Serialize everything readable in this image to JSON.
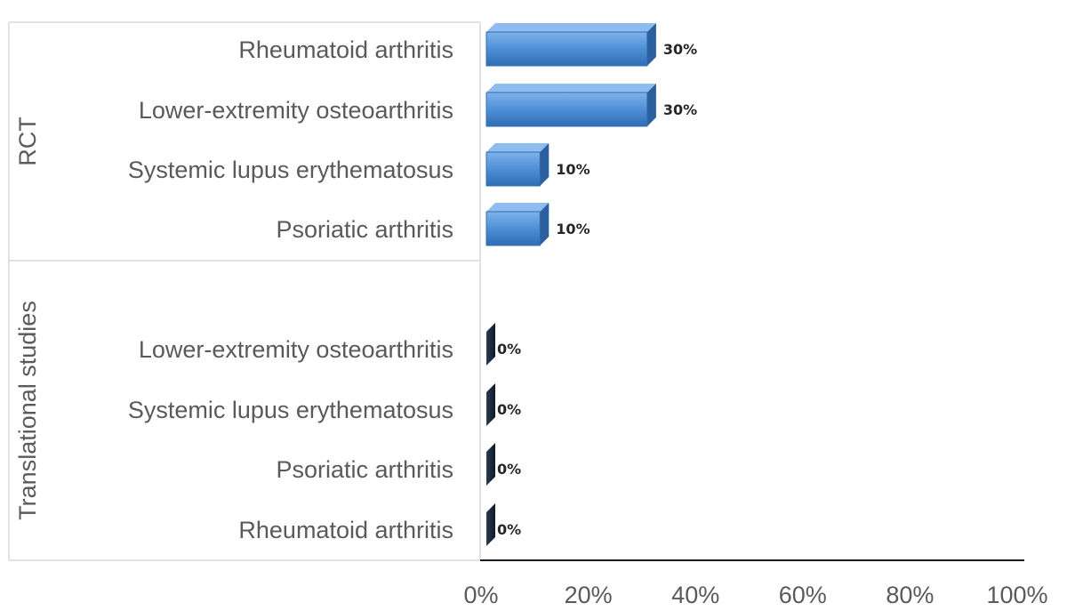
{
  "chart_data": {
    "type": "bar",
    "orientation": "horizontal",
    "style": "3d",
    "groups": [
      {
        "name": "RCT",
        "categories": [
          "Rheumatoid arthritis",
          "Lower-extremity osteoarthritis",
          "Systemic lupus erythematosus",
          "Psoriatic arthritis"
        ],
        "values": [
          30,
          30,
          10,
          10
        ],
        "data_labels": [
          "30%",
          "30%",
          "10%",
          "10%"
        ],
        "color": "#4f8fd6"
      },
      {
        "name": "Translational studies",
        "categories": [
          "Lower-extremity osteoarthritis",
          "Systemic lupus erythematosus",
          "Psoriatic arthritis",
          "Rheumatoid arthritis"
        ],
        "values": [
          0,
          0,
          0,
          0
        ],
        "data_labels": [
          "0%",
          "0%",
          "0%",
          "0%"
        ],
        "color": "#1b2a3d"
      }
    ],
    "x_ticks": [
      "0%",
      "20%",
      "40%",
      "60%",
      "80%",
      "100%"
    ],
    "xlim": [
      0,
      100
    ],
    "grid": false,
    "legend": "none"
  }
}
